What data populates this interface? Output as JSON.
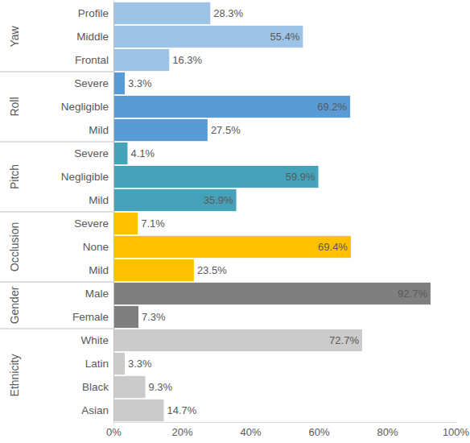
{
  "chart_data": {
    "type": "bar",
    "orientation": "horizontal",
    "data_labels": true,
    "xlim": [
      0,
      100
    ],
    "xticks": [
      {
        "value": 0,
        "label": "0%"
      },
      {
        "value": 20,
        "label": "20%"
      },
      {
        "value": 40,
        "label": "40%"
      },
      {
        "value": 60,
        "label": "60%"
      },
      {
        "value": 80,
        "label": "80%"
      },
      {
        "value": 100,
        "label": "100%"
      }
    ],
    "series": [
      {
        "name": "Yaw",
        "color": "#9dc3e6",
        "categories": [
          "Profile",
          "Middle",
          "Frontal"
        ],
        "values": [
          28.3,
          55.4,
          16.3
        ],
        "value_labels": [
          "28.3%",
          "55.4%",
          "16.3%"
        ]
      },
      {
        "name": "Roll",
        "color": "#5b9bd5",
        "categories": [
          "Severe",
          "Negligible",
          "Mild"
        ],
        "values": [
          3.3,
          69.2,
          27.5
        ],
        "value_labels": [
          "3.3%",
          "69.2%",
          "27.5%"
        ]
      },
      {
        "name": "Pitch",
        "color": "#46a2b9",
        "categories": [
          "Severe",
          "Negligible",
          "Mild"
        ],
        "values": [
          4.1,
          59.9,
          35.9
        ],
        "value_labels": [
          "4.1%",
          "59.9%",
          "35.9%"
        ]
      },
      {
        "name": "Occlusion",
        "color": "#ffc000",
        "categories": [
          "Severe",
          "None",
          "Mild"
        ],
        "values": [
          7.1,
          69.4,
          23.5
        ],
        "value_labels": [
          "7.1%",
          "69.4%",
          "23.5%"
        ]
      },
      {
        "name": "Gender",
        "color": "#7f7f7f",
        "categories": [
          "Male",
          "Female"
        ],
        "values": [
          92.7,
          7.3
        ],
        "value_labels": [
          "92.7%",
          "7.3%"
        ]
      },
      {
        "name": "Ethnicity",
        "color": "#cbcbcb",
        "categories": [
          "White",
          "Latin",
          "Black",
          "Asian"
        ],
        "values": [
          72.7,
          3.3,
          9.3,
          14.7
        ],
        "value_labels": [
          "72.7%",
          "3.3%",
          "9.3%",
          "14.7%"
        ]
      }
    ]
  }
}
